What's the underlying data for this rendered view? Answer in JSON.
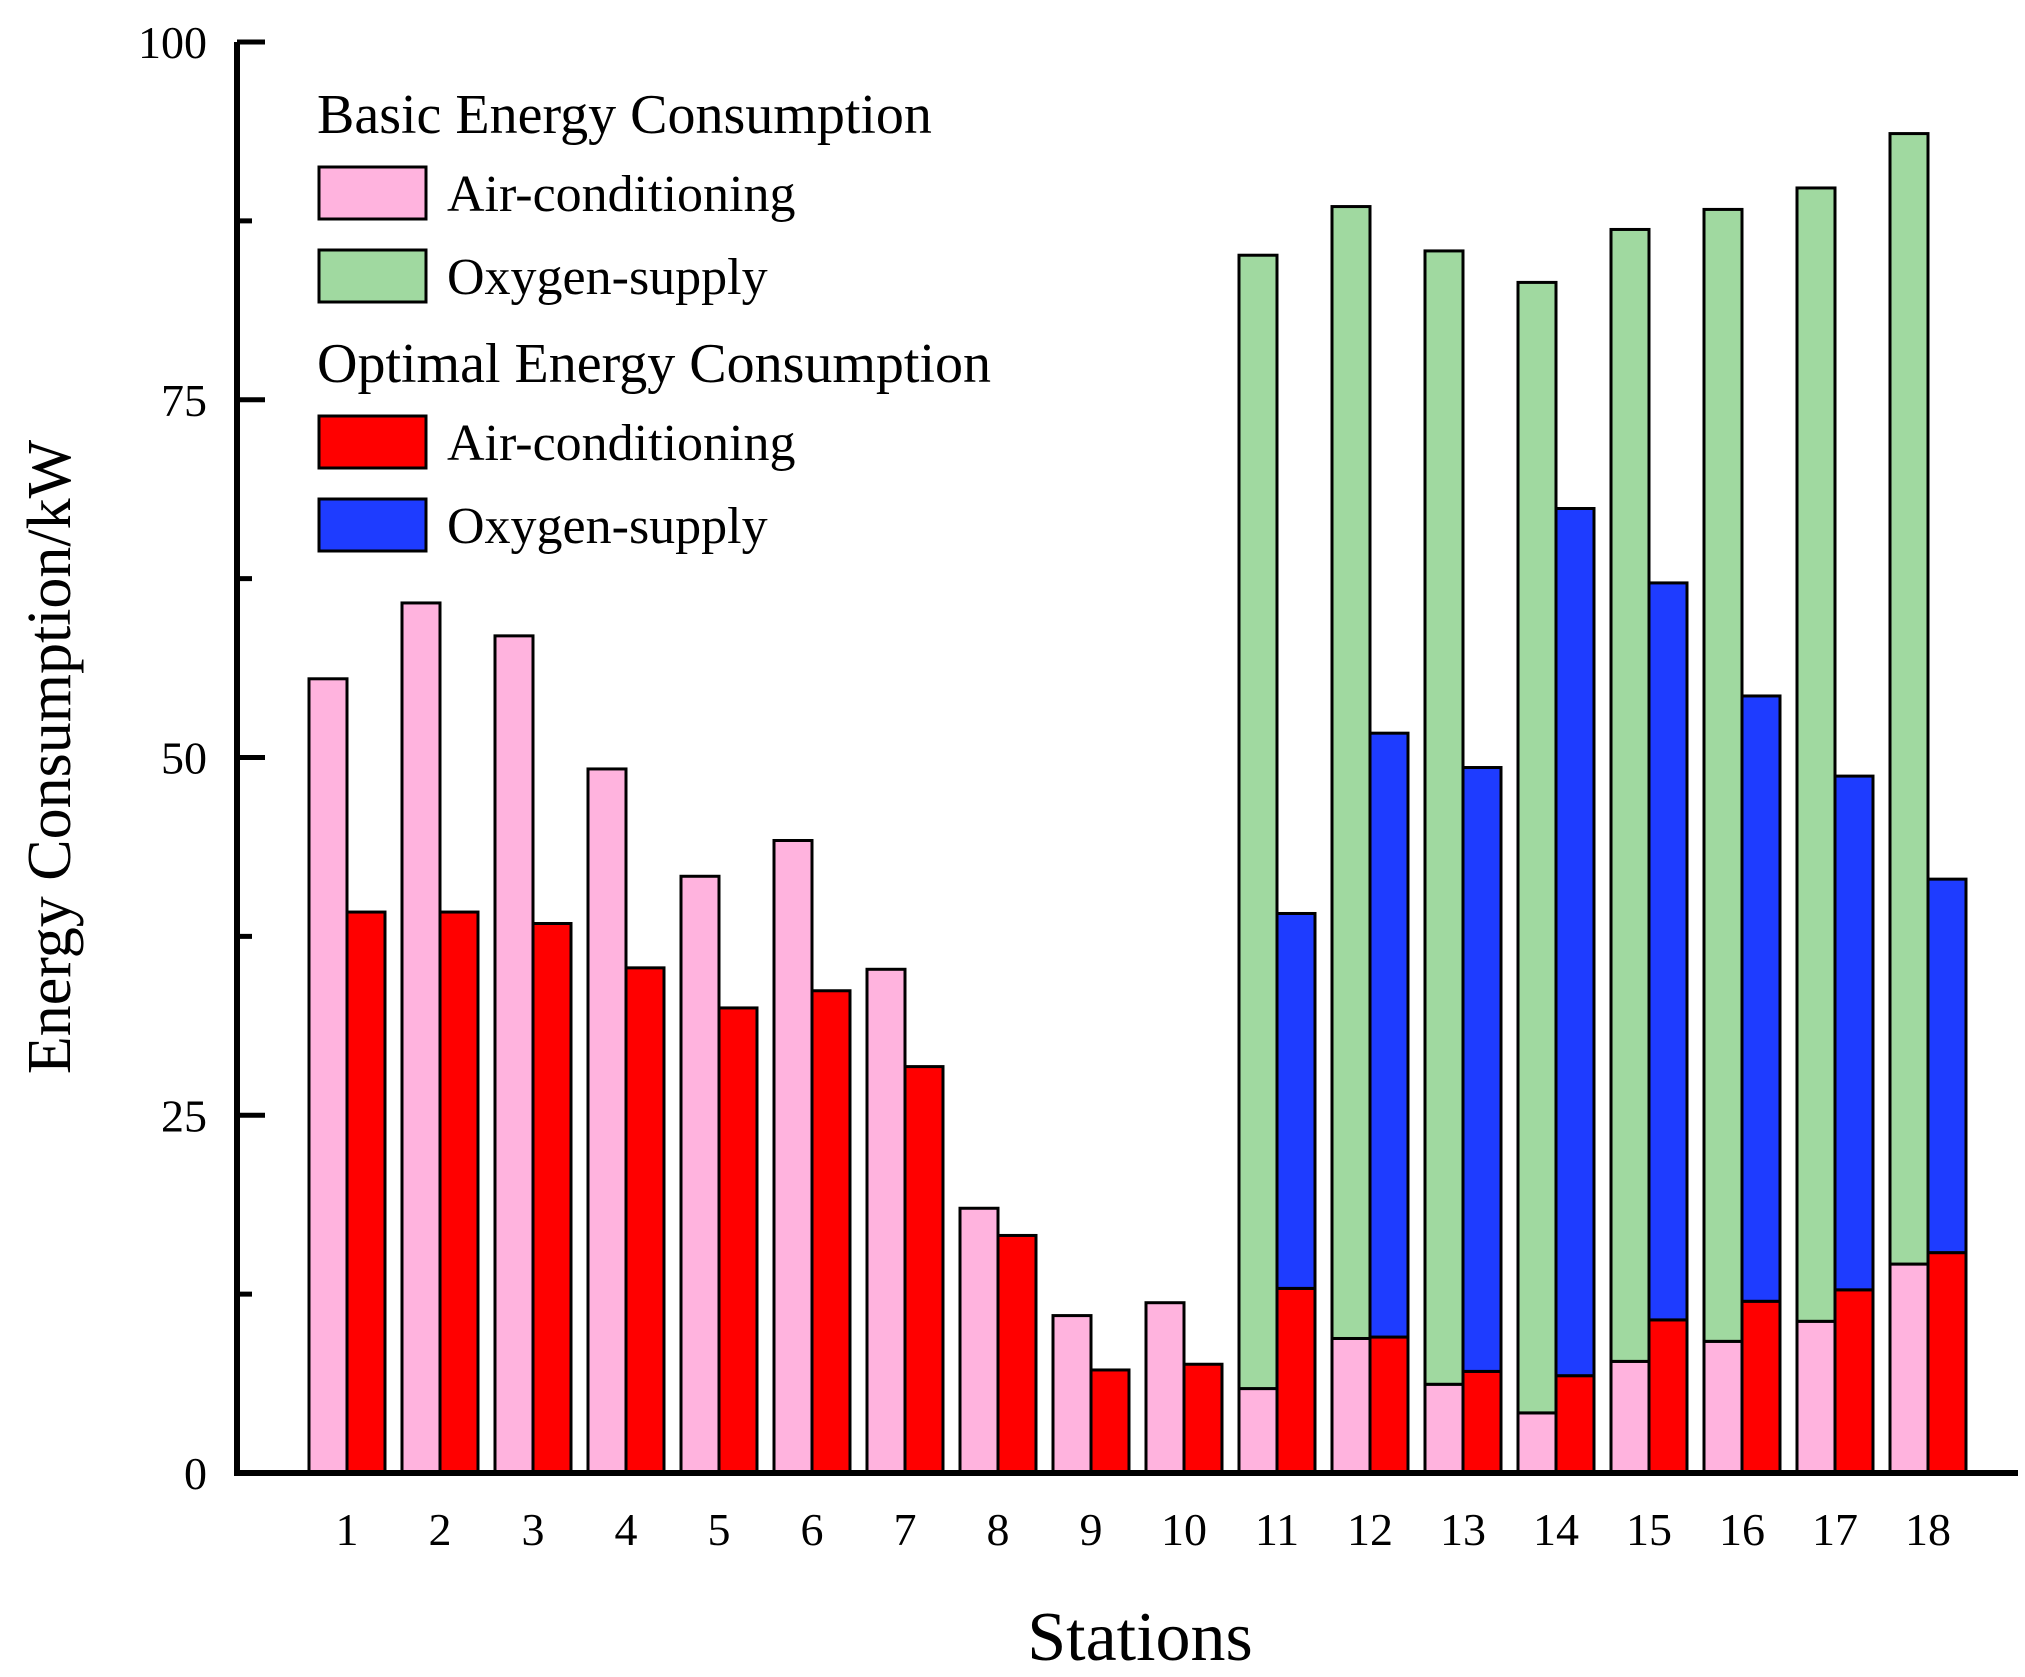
{
  "chart_data": {
    "type": "bar",
    "title": "",
    "xlabel": "Stations",
    "ylabel": "Energy Consumption/kW",
    "ylim": [
      0,
      100
    ],
    "yticks": [
      0,
      25,
      50,
      75,
      100
    ],
    "categories": [
      "1",
      "2",
      "3",
      "4",
      "5",
      "6",
      "7",
      "8",
      "9",
      "10",
      "11",
      "12",
      "13",
      "14",
      "15",
      "16",
      "17",
      "18"
    ],
    "groups": [
      {
        "name": "Basic Energy Consumption",
        "series": [
          {
            "name": "Air-conditioning",
            "color": "#ffb3de",
            "values": [
              55.5,
              60.8,
              58.5,
              49.2,
              41.7,
              44.2,
              35.2,
              18.5,
              11.0,
              11.9,
              5.9,
              9.4,
              6.2,
              4.2,
              7.8,
              9.2,
              10.6,
              14.6
            ]
          },
          {
            "name": "Oxygen-supply",
            "color": "#a0d9a0",
            "values": [
              0,
              0,
              0,
              0,
              0,
              0,
              0,
              0,
              0,
              0,
              79.2,
              79.1,
              79.2,
              79.0,
              79.1,
              79.1,
              79.2,
              79.0
            ]
          }
        ]
      },
      {
        "name": "Optimal Energy Consumption",
        "series": [
          {
            "name": "Air-conditioning",
            "color": "#ff0000",
            "values": [
              39.2,
              39.2,
              38.4,
              35.3,
              32.5,
              33.7,
              28.4,
              16.6,
              7.2,
              7.6,
              12.9,
              9.5,
              7.1,
              6.8,
              10.7,
              12.0,
              12.8,
              15.4
            ]
          },
          {
            "name": "Oxygen-supply",
            "color": "#1e3cff",
            "values": [
              0,
              0,
              0,
              0,
              0,
              0,
              0,
              0,
              0,
              0,
              26.2,
              42.2,
              42.2,
              60.6,
              51.5,
              42.3,
              35.9,
              26.1
            ]
          }
        ]
      }
    ],
    "legend": {
      "position": "top-left",
      "headers": [
        "Basic Energy Consumption",
        "Optimal Energy Consumption"
      ]
    }
  }
}
